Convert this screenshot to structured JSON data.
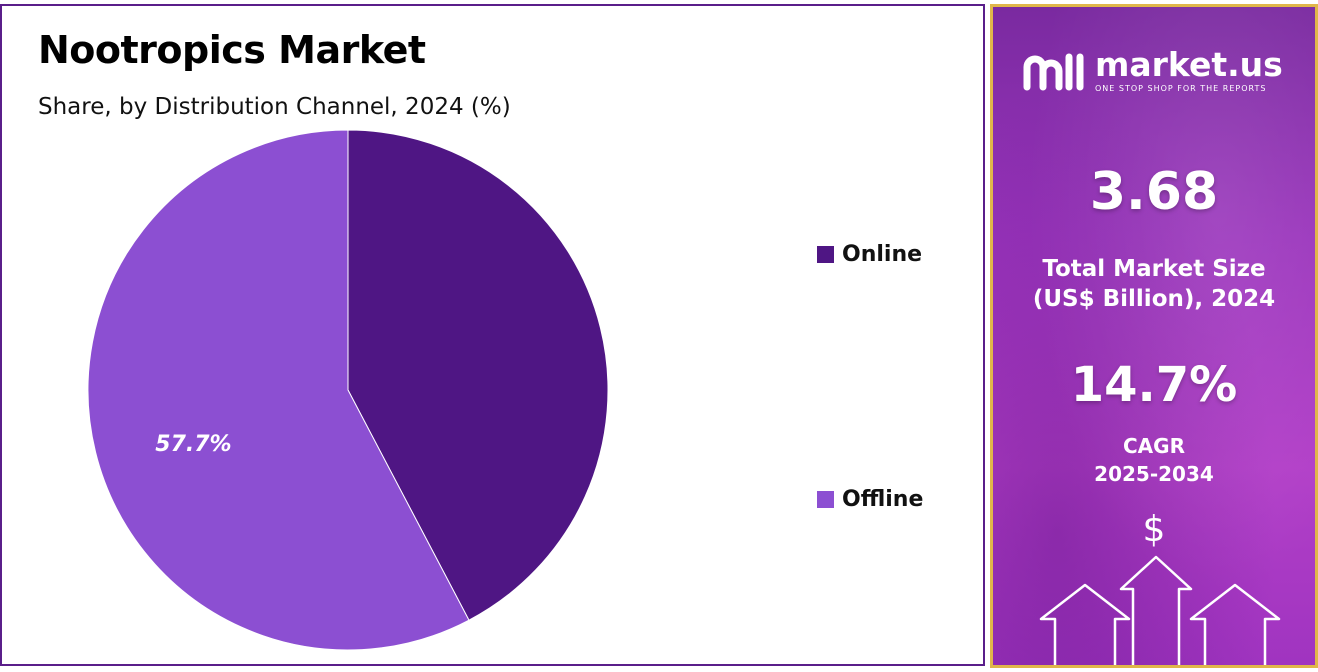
{
  "chart_data": {
    "type": "pie",
    "title": "Nootropics Market",
    "subtitle": "Share, by Distribution Channel, 2024 (%)",
    "series": [
      {
        "name": "Online",
        "value": 42.3,
        "color": "#4f1684"
      },
      {
        "name": "Offline",
        "value": 57.7,
        "color": "#8c4fd2"
      }
    ],
    "data_labels": {
      "Online": "",
      "Offline": "57.7%"
    },
    "legend_position": "right"
  },
  "sidebar": {
    "brand": "market.us",
    "tagline": "ONE STOP SHOP FOR THE REPORTS",
    "market_size_value": "3.68",
    "market_size_label_1": "Total Market Size",
    "market_size_label_2": "(US$ Billion), 2024",
    "cagr_value": "14.7%",
    "cagr_label_1": "CAGR",
    "cagr_label_2": "2025-2034",
    "dollar_symbol": "$"
  }
}
